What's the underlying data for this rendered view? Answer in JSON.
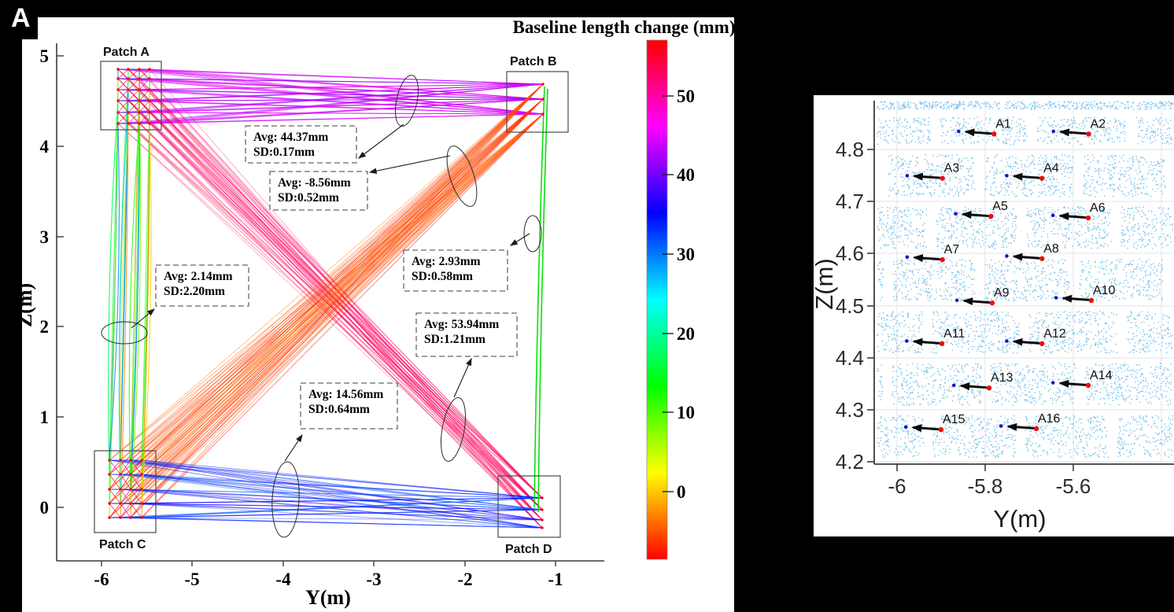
{
  "panel_label": "A",
  "left": {
    "colorbar_title": "Baseline length change (mm)",
    "xlabel": "Y(m)",
    "ylabel": "Z(m)",
    "x_ticks": [
      "-6",
      "-5",
      "-4",
      "-3",
      "-2",
      "-1"
    ],
    "y_ticks": [
      "5",
      "4",
      "3",
      "2",
      "1",
      "0"
    ],
    "colorbar_ticks": [
      "50",
      "40",
      "30",
      "20",
      "10",
      "0"
    ],
    "patch_labels": [
      "Patch A",
      "Patch B",
      "Patch C",
      "Patch D"
    ],
    "annotations": [
      {
        "avg": "Avg: 44.37mm",
        "sd": "SD:0.17mm"
      },
      {
        "avg": "Avg: -8.56mm",
        "sd": "SD:0.52mm"
      },
      {
        "avg": "Avg: 2.93mm",
        "sd": "SD:0.58mm"
      },
      {
        "avg": "Avg: 53.94mm",
        "sd": "SD:1.21mm"
      },
      {
        "avg": "Avg: 14.56mm",
        "sd": "SD:0.64mm"
      },
      {
        "avg": "Avg: 2.14mm",
        "sd": "SD:2.20mm"
      }
    ]
  },
  "right": {
    "xlabel": "Y(m)",
    "ylabel": "Z(m)",
    "x_ticks": [
      "-6",
      "-5.8",
      "-5.6"
    ],
    "y_ticks": [
      "4.8",
      "4.7",
      "4.6",
      "4.5",
      "4.4",
      "4.3",
      "4.2"
    ],
    "point_color": "#70bfe7",
    "marker_colors": {
      "start": "#ea0e0e",
      "end": "#1616cc",
      "arrow": "#0a0a0a"
    }
  },
  "chart_data": [
    {
      "type": "line",
      "title": "Baseline length change (mm)",
      "xlabel": "Y(m)",
      "ylabel": "Z(m)",
      "xlim": [
        -6.5,
        -0.3
      ],
      "ylim": [
        -0.6,
        5.3
      ],
      "grid": false,
      "colorbar": {
        "label": "Baseline length change (mm)",
        "ticks": [
          50,
          40,
          30,
          20,
          10,
          0
        ],
        "vmax": 57,
        "vmin": -8.5,
        "colormap": "hsv"
      },
      "patches": [
        {
          "name": "Patch A",
          "y_range": [
            -6.0,
            -5.35
          ],
          "z_range": [
            4.2,
            4.9
          ]
        },
        {
          "name": "Patch B",
          "y_range": [
            -1.55,
            -0.9
          ],
          "z_range": [
            4.1,
            4.8
          ]
        },
        {
          "name": "Patch C",
          "y_range": [
            -6.05,
            -5.4
          ],
          "z_range": [
            -0.3,
            0.6
          ]
        },
        {
          "name": "Patch D",
          "y_range": [
            -1.65,
            -1.0
          ],
          "z_range": [
            -0.3,
            0.35
          ]
        }
      ],
      "baselines": [
        {
          "bundle": "A-B top horizontal",
          "avg_mm": 44.37,
          "sd_mm": 0.17
        },
        {
          "bundle": "B-C diagonal",
          "avg_mm": -8.56,
          "sd_mm": 0.52
        },
        {
          "bundle": "B-D right vertical",
          "avg_mm": 2.93,
          "sd_mm": 0.58
        },
        {
          "bundle": "A-D diagonal",
          "avg_mm": 53.94,
          "sd_mm": 1.21
        },
        {
          "bundle": "C-D bottom horizontal",
          "avg_mm": 14.56,
          "sd_mm": 0.64
        },
        {
          "bundle": "A-C left vertical",
          "avg_mm": 2.14,
          "sd_mm": 2.2
        }
      ]
    },
    {
      "type": "scatter",
      "xlabel": "Y(m)",
      "ylabel": "Z(m)",
      "xlim": [
        -6.05,
        -5.37
      ],
      "ylim": [
        4.2,
        4.89
      ],
      "x_ticks": [
        -6,
        -5.8,
        -5.6
      ],
      "y_ticks": [
        4.8,
        4.7,
        4.6,
        4.5,
        4.4,
        4.3,
        4.2
      ],
      "points": [
        {
          "label": "A1",
          "y": -5.78,
          "z": 4.83,
          "dy_m": -0.08,
          "dz_m": 0.005
        },
        {
          "label": "A2",
          "y": -5.565,
          "z": 4.83,
          "dy_m": -0.08,
          "dz_m": 0.005
        },
        {
          "label": "A3",
          "y": -5.897,
          "z": 4.745,
          "dy_m": -0.08,
          "dz_m": 0.005
        },
        {
          "label": "A4",
          "y": -5.671,
          "z": 4.745,
          "dy_m": -0.08,
          "dz_m": 0.005
        },
        {
          "label": "A5",
          "y": -5.787,
          "z": 4.672,
          "dy_m": -0.08,
          "dz_m": 0.005
        },
        {
          "label": "A6",
          "y": -5.566,
          "z": 4.669,
          "dy_m": -0.08,
          "dz_m": 0.005
        },
        {
          "label": "A7",
          "y": -5.897,
          "z": 4.589,
          "dy_m": -0.08,
          "dz_m": 0.005
        },
        {
          "label": "A8",
          "y": -5.671,
          "z": 4.591,
          "dy_m": -0.08,
          "dz_m": 0.005
        },
        {
          "label": "A9",
          "y": -5.784,
          "z": 4.506,
          "dy_m": -0.08,
          "dz_m": 0.005
        },
        {
          "label": "A10",
          "y": -5.559,
          "z": 4.511,
          "dy_m": -0.08,
          "dz_m": 0.005
        },
        {
          "label": "A11",
          "y": -5.898,
          "z": 4.428,
          "dy_m": -0.08,
          "dz_m": 0.005
        },
        {
          "label": "A12",
          "y": -5.671,
          "z": 4.428,
          "dy_m": -0.08,
          "dz_m": 0.005
        },
        {
          "label": "A13",
          "y": -5.791,
          "z": 4.343,
          "dy_m": -0.08,
          "dz_m": 0.005
        },
        {
          "label": "A14",
          "y": -5.566,
          "z": 4.348,
          "dy_m": -0.08,
          "dz_m": 0.005
        },
        {
          "label": "A15",
          "y": -5.9,
          "z": 4.263,
          "dy_m": -0.08,
          "dz_m": 0.005
        },
        {
          "label": "A16",
          "y": -5.684,
          "z": 4.265,
          "dy_m": -0.08,
          "dz_m": 0.005
        }
      ]
    }
  ]
}
